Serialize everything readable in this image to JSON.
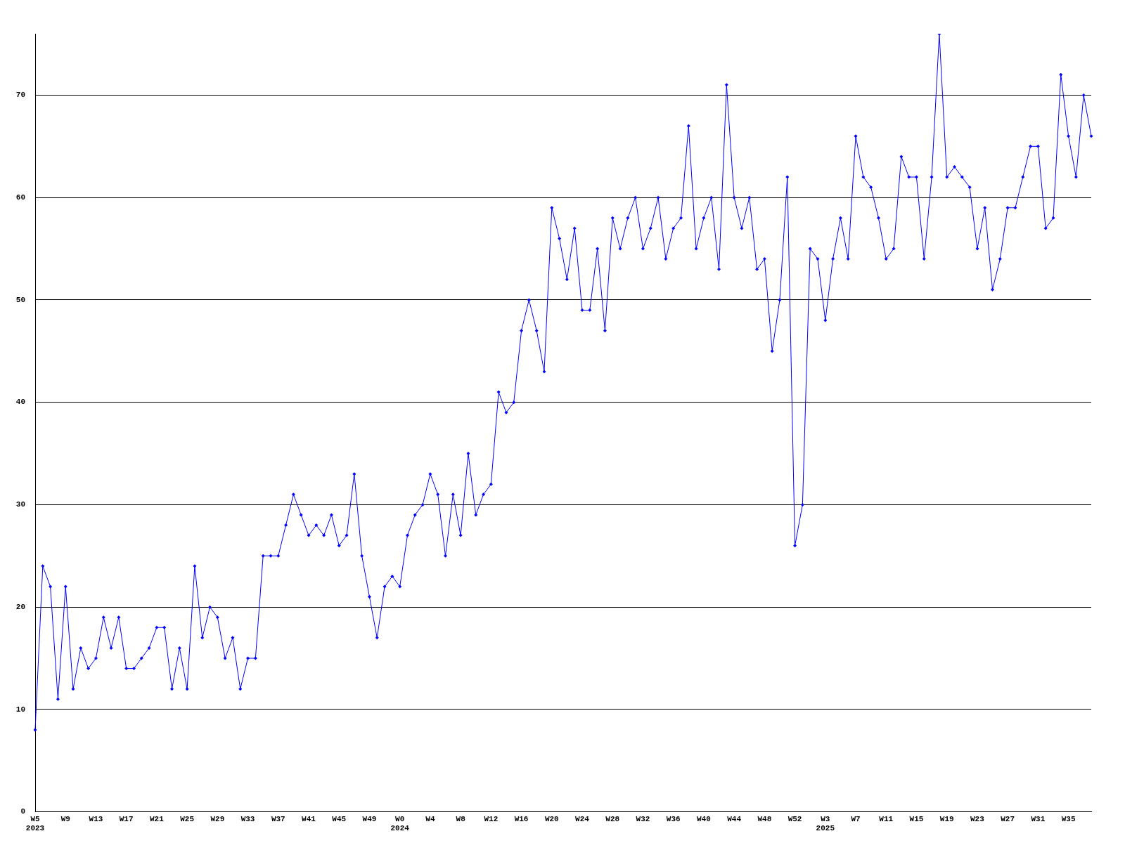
{
  "chart_data": {
    "type": "line",
    "categories": [
      "W5\n2023",
      null,
      null,
      null,
      "W9",
      null,
      null,
      null,
      "W13",
      null,
      null,
      null,
      "W17",
      null,
      null,
      null,
      "W21",
      null,
      null,
      null,
      "W25",
      null,
      null,
      null,
      "W29",
      null,
      null,
      null,
      "W33",
      null,
      null,
      null,
      "W37",
      null,
      null,
      null,
      "W41",
      null,
      null,
      null,
      "W45",
      null,
      null,
      null,
      "W49",
      null,
      null,
      null,
      "W0\n2024",
      null,
      null,
      null,
      "W4",
      null,
      null,
      null,
      "W8",
      null,
      null,
      null,
      "W12",
      null,
      null,
      null,
      "W16",
      null,
      null,
      null,
      "W20",
      null,
      null,
      null,
      "W24",
      null,
      null,
      null,
      "W28",
      null,
      null,
      null,
      "W32",
      null,
      null,
      null,
      "W36",
      null,
      null,
      null,
      "W40",
      null,
      null,
      null,
      "W44",
      null,
      null,
      null,
      "W48",
      null,
      null,
      null,
      "W52",
      null,
      null,
      null,
      "W3\n2025",
      null,
      null,
      null,
      "W7",
      null,
      null,
      null,
      "W11",
      null,
      null,
      null,
      "W15",
      null,
      null,
      null,
      "W19",
      null,
      null,
      null,
      "W23",
      null,
      null,
      null,
      "W27",
      null,
      null,
      null,
      "W31",
      null,
      null,
      null,
      "W35",
      null,
      null,
      null
    ],
    "series": [
      {
        "color": "#0000ff",
        "values": [
          8,
          24,
          22,
          11,
          22,
          12,
          16,
          14,
          15,
          19,
          16,
          19,
          14,
          14,
          15,
          16,
          18,
          18,
          12,
          16,
          12,
          24,
          17,
          20,
          19,
          15,
          17,
          12,
          15,
          15,
          25,
          25,
          25,
          28,
          31,
          29,
          27,
          28,
          27,
          29,
          26,
          27,
          33,
          25,
          21,
          17,
          22,
          23,
          22,
          27,
          29,
          30,
          33,
          31,
          25,
          31,
          27,
          35,
          29,
          31,
          32,
          41,
          39,
          40,
          47,
          50,
          47,
          43,
          59,
          56,
          52,
          57,
          49,
          49,
          55,
          47,
          58,
          55,
          58,
          60,
          55,
          57,
          60,
          54,
          57,
          58,
          67,
          55,
          58,
          60,
          53,
          71,
          60,
          57,
          60,
          53,
          54,
          45,
          50,
          62,
          26,
          30,
          55,
          54,
          48,
          54,
          58,
          54,
          66,
          62,
          61,
          58,
          54,
          55,
          64,
          62,
          62,
          54,
          62,
          76,
          62,
          63,
          62,
          61,
          55,
          59,
          51,
          54,
          59,
          59,
          62,
          65,
          65,
          57,
          58,
          72,
          66,
          62,
          70,
          66
        ]
      }
    ],
    "ylim": [
      0,
      76
    ],
    "yticks": [
      0,
      10,
      20,
      30,
      40,
      50,
      60,
      70
    ],
    "grid": "y",
    "legend": false,
    "marker": "diamond",
    "line_style": "solid"
  }
}
